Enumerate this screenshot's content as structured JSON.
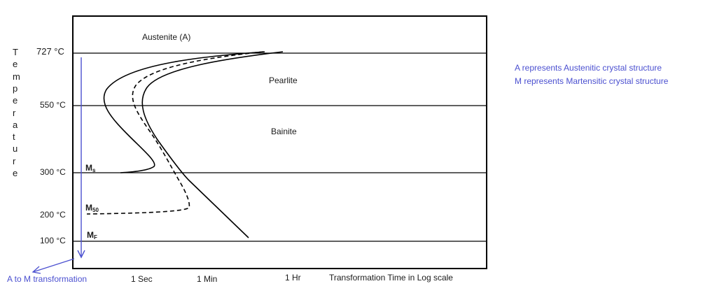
{
  "y_axis_title": "Temperature",
  "temperatures": [
    {
      "label": "727 °C",
      "value": 727
    },
    {
      "label": "550 °C",
      "value": 550
    },
    {
      "label": "300 °C",
      "value": 300
    },
    {
      "label": "200 °C",
      "value": 200
    },
    {
      "label": "100 °C",
      "value": 100
    }
  ],
  "regions": {
    "austenite": "Austenite (A)",
    "pearlite": "Pearlite",
    "bainite": "Bainite"
  },
  "martensite_lines": {
    "ms": {
      "main": "M",
      "sub": "s",
      "temperature": 300
    },
    "m50": {
      "main": "M",
      "sub": "50",
      "temperature": 200
    },
    "mf": {
      "main": "M",
      "sub": "F",
      "temperature": 100
    }
  },
  "x_axis": {
    "ticks": [
      "1 Sec",
      "1 Min",
      "1 Hr"
    ],
    "title": "Transformation Time in Log scale",
    "scale": "log"
  },
  "arrow_label": "A to M transformation",
  "notes": [
    "A represents Austenitic crystal structure",
    "M represents Martensitic crystal structure"
  ],
  "colors": {
    "accent": "#4b50d0",
    "lines": "#000000",
    "text": "#1a1a1a"
  },
  "curves": {
    "start": "transformation start curve (solid)",
    "fifty_percent": "50% transformation curve (dashed)",
    "finish": "transformation finish curve (solid)"
  }
}
